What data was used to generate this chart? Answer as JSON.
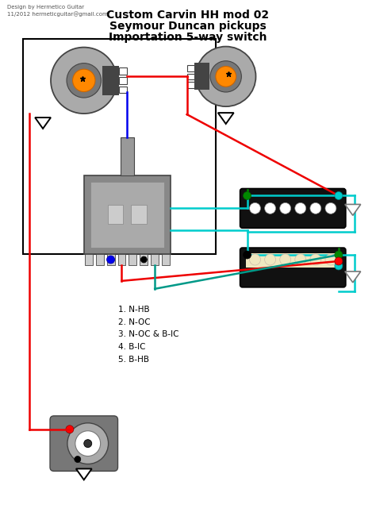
{
  "title1": "Custom Carvin HH mod 02",
  "title2": "Seymour Duncan pickups",
  "title3": "Importation 5-way switch",
  "credit1": "Design by Hermetico Guitar",
  "credit2": "11/2012 hermeticguitar@gmail.com",
  "labels": [
    "1. N-HB",
    "2. N-OC",
    "3. N-OC & B-IC",
    "4. B-IC",
    "5. B-HB"
  ],
  "bg": "#ffffff",
  "red": "#ee0000",
  "blue": "#0000ee",
  "black": "#111111",
  "cyan": "#00cccc",
  "green": "#008800",
  "teal": "#009977",
  "dgray": "#444444",
  "mgray": "#777777",
  "lgray": "#aaaaaa",
  "xlgray": "#cccccc",
  "orange": "#ff8800",
  "cream": "#e8d090",
  "cream2": "#f0e8c0"
}
